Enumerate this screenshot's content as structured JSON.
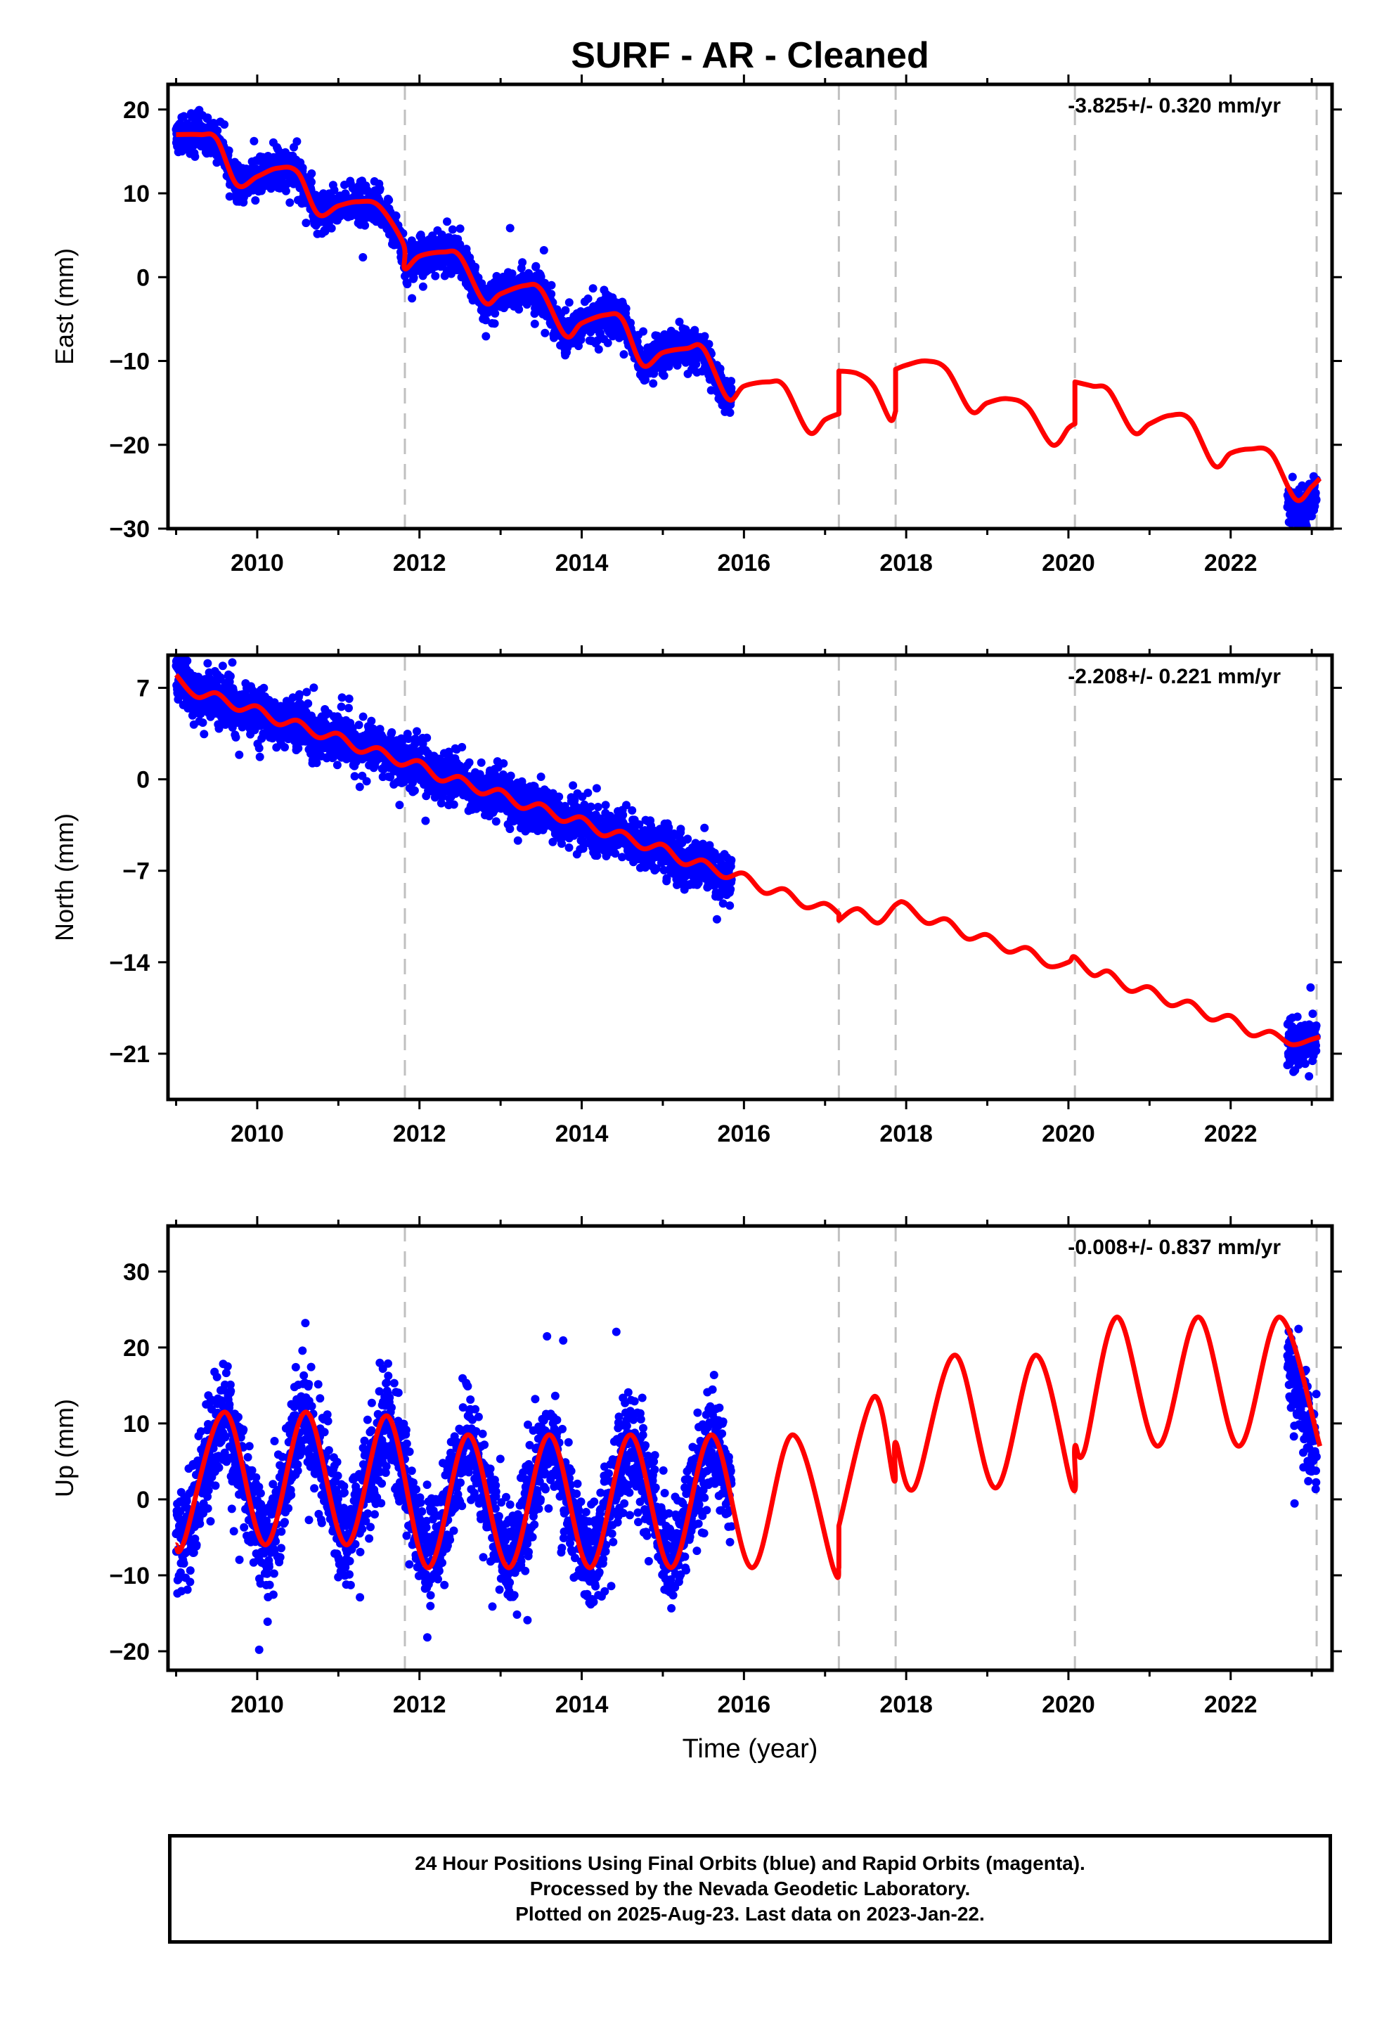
{
  "title": "SURF  - AR - Cleaned",
  "footer": {
    "line1": "24 Hour Positions Using Final Orbits (blue) and Rapid Orbits (magenta).",
    "line2": "Processed by the Nevada Geodetic Laboratory.",
    "line3": "Plotted on 2025-Aug-23. Last data on 2023-Jan-22."
  },
  "colors": {
    "data": "#0000ff",
    "model": "#ff0000",
    "event_lines": "#c0c0c0"
  },
  "chart_data": [
    {
      "type": "scatter",
      "ylabel": "East (mm)",
      "xlabel": "",
      "rate_label": "-3.825+/- 0.320 mm/yr",
      "xlim": [
        2008.9,
        2023.25
      ],
      "ylim": [
        -30,
        23
      ],
      "x_ticks": [
        2010,
        2012,
        2014,
        2016,
        2018,
        2020,
        2022
      ],
      "y_ticks": [
        20,
        10,
        0,
        -10,
        -20,
        -30
      ],
      "y_tick_labels": [
        "20",
        "10",
        "0",
        "−10",
        "−20",
        "−30"
      ],
      "event_lines": [
        2011.82,
        2017.17,
        2017.87,
        2020.08,
        2023.06
      ],
      "model_points": [
        [
          2009.0,
          17
        ],
        [
          2009.3,
          17
        ],
        [
          2009.5,
          16.5
        ],
        [
          2009.75,
          11
        ],
        [
          2010.0,
          12
        ],
        [
          2010.25,
          13
        ],
        [
          2010.5,
          12.5
        ],
        [
          2010.75,
          7.5
        ],
        [
          2011.0,
          8.5
        ],
        [
          2011.25,
          9
        ],
        [
          2011.5,
          8.5
        ],
        [
          2011.8,
          4
        ],
        [
          2011.82,
          1
        ],
        [
          2012.0,
          2.5
        ],
        [
          2012.3,
          3
        ],
        [
          2012.5,
          2.5
        ],
        [
          2012.8,
          -3
        ],
        [
          2013.0,
          -2
        ],
        [
          2013.3,
          -1
        ],
        [
          2013.5,
          -1.5
        ],
        [
          2013.8,
          -7
        ],
        [
          2014.0,
          -5.5
        ],
        [
          2014.3,
          -4.5
        ],
        [
          2014.5,
          -5
        ],
        [
          2014.75,
          -10.5
        ],
        [
          2015.0,
          -9
        ],
        [
          2015.3,
          -8.5
        ],
        [
          2015.5,
          -8.5
        ],
        [
          2015.8,
          -14.5
        ],
        [
          2016.0,
          -13
        ],
        [
          2016.3,
          -12.5
        ],
        [
          2016.5,
          -13
        ],
        [
          2016.8,
          -18.5
        ],
        [
          2017.0,
          -17
        ],
        [
          2017.17,
          -16.3
        ],
        [
          2017.17,
          -11.2
        ],
        [
          2017.4,
          -11.5
        ],
        [
          2017.6,
          -13
        ],
        [
          2017.8,
          -17
        ],
        [
          2017.87,
          -16
        ],
        [
          2017.87,
          -11
        ],
        [
          2018.0,
          -10.5
        ],
        [
          2018.25,
          -10
        ],
        [
          2018.5,
          -11
        ],
        [
          2018.8,
          -16
        ],
        [
          2019.0,
          -15
        ],
        [
          2019.25,
          -14.5
        ],
        [
          2019.5,
          -15.5
        ],
        [
          2019.8,
          -20
        ],
        [
          2020.0,
          -18
        ],
        [
          2020.08,
          -17.5
        ],
        [
          2020.08,
          -12.5
        ],
        [
          2020.3,
          -13
        ],
        [
          2020.5,
          -13.5
        ],
        [
          2020.8,
          -18.5
        ],
        [
          2021.0,
          -17.5
        ],
        [
          2021.25,
          -16.5
        ],
        [
          2021.5,
          -17
        ],
        [
          2021.8,
          -22.5
        ],
        [
          2022.0,
          -21
        ],
        [
          2022.25,
          -20.5
        ],
        [
          2022.5,
          -21
        ],
        [
          2022.8,
          -26.5
        ],
        [
          2023.0,
          -25
        ],
        [
          2023.1,
          -24
        ]
      ],
      "data_segments": [
        {
          "x0": 2009.0,
          "x1": 2015.85,
          "trend_shift": 0.0
        },
        {
          "x0": 2022.7,
          "x1": 2023.06,
          "trend_shift": -1.5
        }
      ]
    },
    {
      "type": "scatter",
      "ylabel": "North (mm)",
      "xlabel": "",
      "rate_label": "-2.208+/- 0.221 mm/yr",
      "xlim": [
        2008.9,
        2023.25
      ],
      "ylim": [
        -24.5,
        9.5
      ],
      "x_ticks": [
        2010,
        2012,
        2014,
        2016,
        2018,
        2020,
        2022
      ],
      "y_ticks": [
        7,
        0,
        -7,
        -14,
        -21
      ],
      "y_tick_labels": [
        "7",
        "0",
        "−7",
        "−14",
        "−21"
      ],
      "event_lines": [
        2011.82,
        2017.17,
        2017.87,
        2020.08,
        2023.06
      ],
      "model_points": [
        [
          2009.0,
          8
        ],
        [
          2009.25,
          6.3
        ],
        [
          2009.5,
          6.6
        ],
        [
          2009.75,
          5.3
        ],
        [
          2010.0,
          5.6
        ],
        [
          2010.25,
          4.2
        ],
        [
          2010.5,
          4.5
        ],
        [
          2010.75,
          3.2
        ],
        [
          2011.0,
          3.5
        ],
        [
          2011.25,
          2.1
        ],
        [
          2011.5,
          2.4
        ],
        [
          2011.75,
          1.1
        ],
        [
          2012.0,
          1.4
        ],
        [
          2012.25,
          -0.1
        ],
        [
          2012.5,
          0.2
        ],
        [
          2012.75,
          -1.1
        ],
        [
          2013.0,
          -0.8
        ],
        [
          2013.25,
          -2.2
        ],
        [
          2013.5,
          -1.9
        ],
        [
          2013.75,
          -3.2
        ],
        [
          2014.0,
          -2.9
        ],
        [
          2014.25,
          -4.3
        ],
        [
          2014.5,
          -4.0
        ],
        [
          2014.75,
          -5.3
        ],
        [
          2015.0,
          -5.0
        ],
        [
          2015.25,
          -6.5
        ],
        [
          2015.5,
          -6.2
        ],
        [
          2015.75,
          -7.5
        ],
        [
          2016.0,
          -7.2
        ],
        [
          2016.25,
          -8.7
        ],
        [
          2016.5,
          -8.4
        ],
        [
          2016.75,
          -9.8
        ],
        [
          2017.0,
          -9.5
        ],
        [
          2017.17,
          -10.3
        ],
        [
          2017.17,
          -10.8
        ],
        [
          2017.4,
          -9.9
        ],
        [
          2017.65,
          -11.0
        ],
        [
          2017.87,
          -9.6
        ],
        [
          2018.0,
          -9.5
        ],
        [
          2018.25,
          -11.0
        ],
        [
          2018.5,
          -10.7
        ],
        [
          2018.75,
          -12.2
        ],
        [
          2019.0,
          -11.9
        ],
        [
          2019.25,
          -13.2
        ],
        [
          2019.5,
          -12.9
        ],
        [
          2019.75,
          -14.3
        ],
        [
          2020.0,
          -14.0
        ],
        [
          2020.08,
          -13.6
        ],
        [
          2020.3,
          -15.0
        ],
        [
          2020.5,
          -14.7
        ],
        [
          2020.75,
          -16.2
        ],
        [
          2021.0,
          -15.9
        ],
        [
          2021.25,
          -17.3
        ],
        [
          2021.5,
          -17.0
        ],
        [
          2021.75,
          -18.4
        ],
        [
          2022.0,
          -18.1
        ],
        [
          2022.25,
          -19.6
        ],
        [
          2022.5,
          -19.3
        ],
        [
          2022.75,
          -20.3
        ],
        [
          2023.0,
          -19.9
        ],
        [
          2023.1,
          -19.7
        ]
      ],
      "data_segments": [
        {
          "x0": 2009.0,
          "x1": 2015.85,
          "trend_shift": 0.0
        },
        {
          "x0": 2022.7,
          "x1": 2023.06,
          "trend_shift": 0.0
        }
      ]
    },
    {
      "type": "scatter",
      "ylabel": "Up (mm)",
      "xlabel": "Time (year)",
      "rate_label": "-0.008+/- 0.837 mm/yr",
      "xlim": [
        2008.9,
        2023.25
      ],
      "ylim": [
        -22.5,
        36
      ],
      "x_ticks": [
        2010,
        2012,
        2014,
        2016,
        2018,
        2020,
        2022
      ],
      "y_ticks": [
        30,
        20,
        10,
        0,
        -10,
        -20
      ],
      "y_tick_labels": [
        "30",
        "20",
        "10",
        "0",
        "−10",
        "−20"
      ],
      "event_lines": [
        2011.82,
        2017.17,
        2017.87,
        2020.08,
        2023.06
      ],
      "model_points": [
        [
          2009.0,
          -6
        ],
        [
          2009.1,
          -5.5
        ],
        [
          2009.6,
          11.5
        ],
        [
          2010.1,
          -6
        ],
        [
          2010.6,
          11.5
        ],
        [
          2011.1,
          -6
        ],
        [
          2011.6,
          11
        ],
        [
          2012.1,
          -9
        ],
        [
          2012.6,
          8.5
        ],
        [
          2013.1,
          -9
        ],
        [
          2013.6,
          8.5
        ],
        [
          2014.1,
          -9
        ],
        [
          2014.6,
          8.5
        ],
        [
          2015.1,
          -9
        ],
        [
          2015.6,
          8.5
        ],
        [
          2016.1,
          -9
        ],
        [
          2016.6,
          8.5
        ],
        [
          2017.1,
          -9
        ],
        [
          2017.17,
          -9
        ],
        [
          2017.17,
          -3.5
        ],
        [
          2017.6,
          13.5
        ],
        [
          2017.85,
          2.5
        ],
        [
          2017.87,
          7.5
        ],
        [
          2018.1,
          1.5
        ],
        [
          2018.6,
          19
        ],
        [
          2019.1,
          1.5
        ],
        [
          2019.6,
          19
        ],
        [
          2020.05,
          1.5
        ],
        [
          2020.08,
          7
        ],
        [
          2020.2,
          6.5
        ],
        [
          2020.6,
          24
        ],
        [
          2021.1,
          7
        ],
        [
          2021.6,
          24
        ],
        [
          2022.1,
          7
        ],
        [
          2022.6,
          24
        ],
        [
          2023.1,
          7
        ]
      ],
      "data_segments": [
        {
          "x0": 2009.0,
          "x1": 2015.85,
          "trend_shift": 0.0
        },
        {
          "x0": 2022.7,
          "x1": 2023.06,
          "trend_shift": -2.0
        }
      ]
    }
  ]
}
